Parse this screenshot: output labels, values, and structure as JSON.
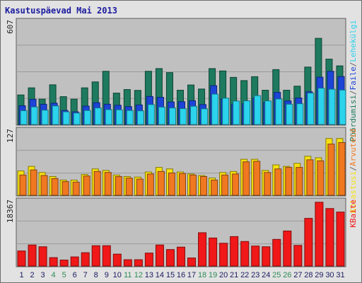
{
  "chart_data": [
    {
      "type": "bar",
      "title": "Kasutuspäevad Mai 2013",
      "ylabel_max": "607",
      "ymax": 607,
      "series": [
        {
          "name": "Pöördumisi",
          "color": "#1d7a5e",
          "values": [
            175,
            217,
            150,
            235,
            165,
            150,
            217,
            252,
            315,
            186,
            207,
            202,
            315,
            331,
            307,
            203,
            234,
            210,
            331,
            317,
            279,
            260,
            283,
            203,
            325,
            203,
            227,
            340,
            510,
            387,
            347
          ]
        },
        {
          "name": "Faile",
          "color": "#1c44d8",
          "values": [
            111,
            149,
            120,
            126,
            83,
            75,
            109,
            129,
            120,
            114,
            106,
            116,
            166,
            161,
            133,
            135,
            141,
            118,
            230,
            151,
            120,
            123,
            156,
            130,
            190,
            140,
            157,
            194,
            280,
            315,
            284
          ]
        },
        {
          "name": "Lehekülgi",
          "color": "#2bd3ec",
          "values": [
            82,
            104,
            85,
            110,
            75,
            68,
            83,
            98,
            88,
            87,
            83,
            81,
            118,
            103,
            98,
            94,
            108,
            93,
            180,
            156,
            139,
            140,
            171,
            140,
            151,
            120,
            123,
            186,
            215,
            209,
            204
          ]
        }
      ],
      "subtitle_segments": [
        "Pöördumisi",
        "/",
        "Faile",
        "/",
        "Lehekülgi",
        "/",
        "Arvuteid",
        "/",
        "Külastusi"
      ]
    },
    {
      "type": "bar",
      "ylabel_max": "127",
      "ymax": 127,
      "series": [
        {
          "name": "Külastusi",
          "color": "#f5e010",
          "values": [
            48,
            57,
            45,
            37,
            30,
            30,
            41,
            52,
            49,
            40,
            37,
            36,
            46,
            55,
            52,
            46,
            42,
            39,
            34,
            45,
            47,
            71,
            71,
            49,
            60,
            57,
            63,
            77,
            74,
            112,
            112
          ]
        },
        {
          "name": "Arvuteid",
          "color": "#f07820",
          "values": [
            40,
            50,
            39,
            33,
            27,
            26,
            38,
            47,
            45,
            37,
            34,
            32,
            42,
            47,
            44,
            43,
            40,
            37,
            30,
            40,
            42,
            66,
            67,
            45,
            52,
            55,
            55,
            70,
            68,
            101,
            104
          ]
        }
      ]
    },
    {
      "type": "bar",
      "ylabel_max": "18367",
      "ymax": 18367,
      "series": [
        {
          "name": "KBaite",
          "color": "#f01818",
          "values": [
            4300,
            6000,
            5500,
            2400,
            1700,
            2600,
            3800,
            5800,
            5800,
            3400,
            1800,
            1800,
            3700,
            6000,
            4700,
            5400,
            2300,
            9500,
            8000,
            6500,
            8400,
            7000,
            5700,
            5500,
            7600,
            10000,
            5900,
            13600,
            18200,
            16400,
            15400
          ]
        }
      ]
    }
  ],
  "x_labels": [
    "1",
    "2",
    "3",
    "4",
    "5",
    "6",
    "7",
    "8",
    "9",
    "10",
    "11",
    "12",
    "13",
    "14",
    "15",
    "16",
    "17",
    "18",
    "19",
    "20",
    "21",
    "22",
    "23",
    "24",
    "25",
    "26",
    "27",
    "28",
    "29",
    "30",
    "31"
  ],
  "weekend_days": [
    4,
    5,
    11,
    12,
    18,
    19,
    25,
    26
  ],
  "right_legend": {
    "top": [
      {
        "text": "Pöördumisi",
        "color": "#1d7a5e"
      },
      {
        "text": "/",
        "color": "#606060"
      },
      {
        "text": "Faile",
        "color": "#1c44d8"
      },
      {
        "text": "/",
        "color": "#606060"
      },
      {
        "text": "Lehekülgi",
        "color": "#2bd3ec"
      }
    ],
    "middle": [
      {
        "text": "Külastusi",
        "color": "#f5e010"
      },
      {
        "text": "/",
        "color": "#606060"
      },
      {
        "text": "Arvuteid",
        "color": "#f07820"
      }
    ],
    "bottom": [
      {
        "text": "KBaite",
        "color": "#f01818"
      }
    ]
  },
  "colors": {
    "panel_bg": "#c0c0c0",
    "frame_bg": "#e2e2e2",
    "grid": "#9a9a9a",
    "weekday_label": "#1a1a60",
    "weekend_label": "#2e8b57"
  }
}
